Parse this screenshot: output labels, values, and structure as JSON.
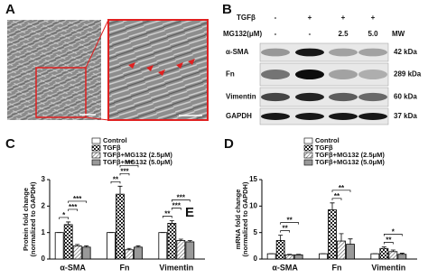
{
  "panels": {
    "a": "A",
    "b": "B",
    "c": "C",
    "d": "D"
  },
  "blot": {
    "tgf_label": "TGFβ",
    "mg_label": "MG132(μM)",
    "mw_label": "MW",
    "tgf": [
      "-",
      "+",
      "+",
      "+"
    ],
    "mg": [
      "-",
      "-",
      "2.5",
      "5.0"
    ],
    "rows": [
      {
        "name": "α-SMA",
        "mw": "42 kDa"
      },
      {
        "name": "Fn",
        "mw": "289 kDa"
      },
      {
        "name": "Vimentin",
        "mw": "60 kDa"
      },
      {
        "name": "GAPDH",
        "mw": "37 kDa"
      }
    ]
  },
  "chart_data": [
    {
      "type": "bar",
      "ylabel": [
        "Protein fold change",
        "(normalized to GAPDH)"
      ],
      "categories": [
        "α-SMA",
        "Fn",
        "Vimentin"
      ],
      "ylim": [
        0,
        3
      ],
      "yticks": [
        0,
        1,
        2,
        3
      ],
      "panel_mark": "E",
      "series": [
        {
          "name": "Control",
          "color": "#ffffff",
          "pattern": "none",
          "values": [
            1,
            1,
            1
          ],
          "errors": [
            0,
            0,
            0
          ]
        },
        {
          "name": "TGFβ",
          "color": "#444444",
          "pattern": "checker",
          "values": [
            1.3,
            2.45,
            1.35
          ],
          "errors": [
            0.1,
            0.3,
            0.1
          ]
        },
        {
          "name": "TGFβ+MG132 (2.5μM)",
          "color": "#bbbbbb",
          "pattern": "hatch",
          "values": [
            0.5,
            0.35,
            0.7
          ],
          "errors": [
            0.05,
            0.05,
            0.05
          ]
        },
        {
          "name": "TGFβ+MG132 (5.0μM)",
          "color": "#999999",
          "pattern": "none",
          "values": [
            0.45,
            0.45,
            0.65
          ],
          "errors": [
            0.05,
            0.05,
            0.05
          ]
        }
      ],
      "annotations": [
        "*",
        "***",
        "***",
        "**",
        "***",
        "***",
        "**",
        "***",
        "***"
      ]
    },
    {
      "type": "bar",
      "ylabel": [
        "mRNA fold change",
        "(normalized to GAPDH)"
      ],
      "categories": [
        "α-SMA",
        "Fn",
        "Vimentin"
      ],
      "ylim": [
        0,
        15
      ],
      "yticks": [
        0,
        5,
        10,
        15
      ],
      "series": [
        {
          "name": "Control",
          "color": "#ffffff",
          "pattern": "none",
          "values": [
            1,
            1,
            1
          ],
          "errors": [
            0,
            0,
            0
          ]
        },
        {
          "name": "TGFβ",
          "color": "#444444",
          "pattern": "checker",
          "values": [
            3.5,
            9.3,
            2
          ],
          "errors": [
            1,
            1.3,
            0.3
          ]
        },
        {
          "name": "TGFβ+MG132 (2.5μM)",
          "color": "#bbbbbb",
          "pattern": "hatch",
          "values": [
            0.8,
            3.4,
            1.4
          ],
          "errors": [
            0.1,
            1.4,
            0.3
          ]
        },
        {
          "name": "TGFβ+MG132 (5.0μM)",
          "color": "#999999",
          "pattern": "none",
          "values": [
            0.8,
            2.8,
            0.9
          ],
          "errors": [
            0.1,
            1,
            0.2
          ]
        }
      ],
      "annotations": [
        "**",
        "**",
        "**",
        "**",
        "**",
        "*"
      ]
    }
  ]
}
